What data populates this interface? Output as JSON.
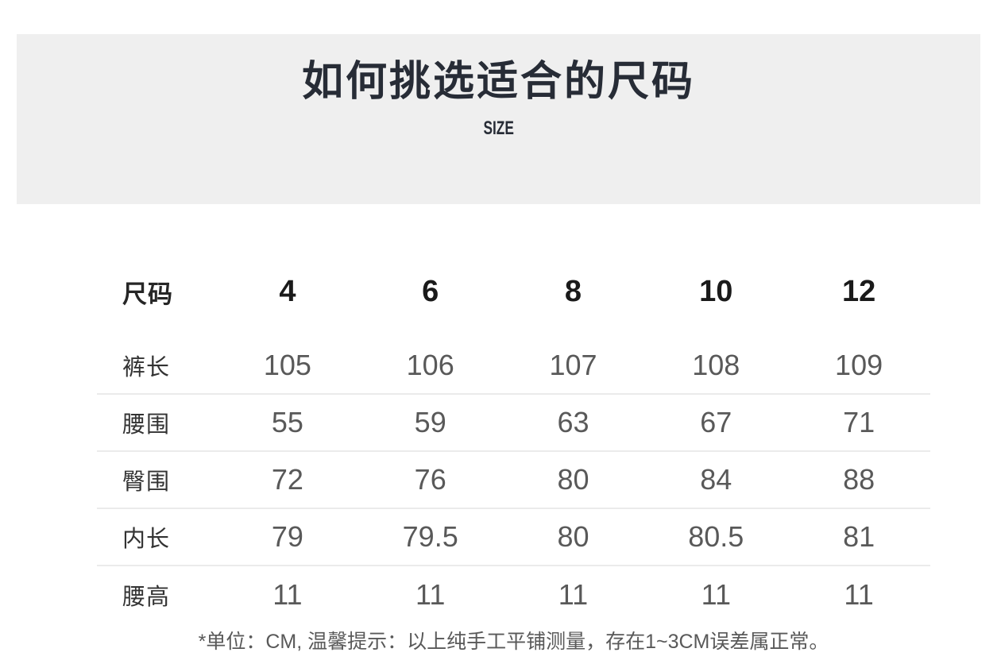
{
  "banner": {
    "title": "如何挑选适合的尺码",
    "subtitle": "SIZE"
  },
  "chart_data": {
    "type": "table",
    "title": "如何挑选适合的尺码",
    "subtitle": "SIZE",
    "columns": [
      "尺码",
      "4",
      "6",
      "8",
      "10",
      "12"
    ],
    "rows": [
      [
        "裤长",
        "105",
        "106",
        "107",
        "108",
        "109"
      ],
      [
        "腰围",
        "55",
        "59",
        "63",
        "67",
        "71"
      ],
      [
        "臀围",
        "72",
        "76",
        "80",
        "84",
        "88"
      ],
      [
        "内长",
        "79",
        "79.5",
        "80",
        "80.5",
        "81"
      ],
      [
        "腰高",
        "11",
        "11",
        "11",
        "11",
        "11"
      ]
    ],
    "unit": "CM",
    "note": "*单位：CM, 温馨提示：以上纯手工平铺测量，存在1~3CM误差属正常。"
  },
  "colors": {
    "page_bg": "#ffffff",
    "banner_bg": "#efefef",
    "title_text": "#272c36",
    "header_text": "#1a1a1a",
    "label_text": "#333333",
    "value_text": "#595959",
    "divider": "#ebebeb"
  }
}
